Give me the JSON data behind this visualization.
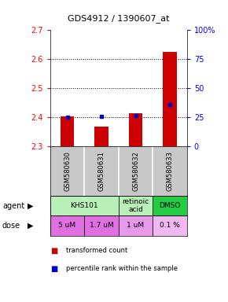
{
  "title": "GDS4912 / 1390607_at",
  "samples": [
    "GSM580630",
    "GSM580631",
    "GSM580632",
    "GSM580633"
  ],
  "bar_bottoms": [
    2.3,
    2.3,
    2.3,
    2.3
  ],
  "bar_tops": [
    2.405,
    2.37,
    2.415,
    2.625
  ],
  "percentile_values": [
    2.402,
    2.405,
    2.408,
    2.445
  ],
  "ylim": [
    2.3,
    2.7
  ],
  "yticks_left": [
    2.3,
    2.4,
    2.5,
    2.6,
    2.7
  ],
  "yticks_right": [
    0,
    25,
    50,
    75,
    100
  ],
  "right_ylabels": [
    "0",
    "25",
    "50",
    "75",
    "100%"
  ],
  "hgrid_vals": [
    2.4,
    2.5,
    2.6
  ],
  "bar_color": "#cc0000",
  "percentile_color": "#0000cc",
  "agent_groups": [
    {
      "start": 0,
      "end": 2,
      "label": "KHS101",
      "color": "#b8f0b8"
    },
    {
      "start": 2,
      "end": 3,
      "label": "retinoic\nacid",
      "color": "#b8f0b8"
    },
    {
      "start": 3,
      "end": 4,
      "label": "DMSO",
      "color": "#22cc44"
    }
  ],
  "dose_labels": [
    "5 uM",
    "1.7 uM",
    "1 uM",
    "0.1 %"
  ],
  "dose_colors": [
    "#e070e0",
    "#e070e0",
    "#f0a0f0",
    "#f0c0f0"
  ],
  "sample_bg_color": "#c8c8c8",
  "legend_red_label": "transformed count",
  "legend_blue_label": "percentile rank within the sample",
  "left_label_agent": "agent",
  "left_label_dose": "dose"
}
